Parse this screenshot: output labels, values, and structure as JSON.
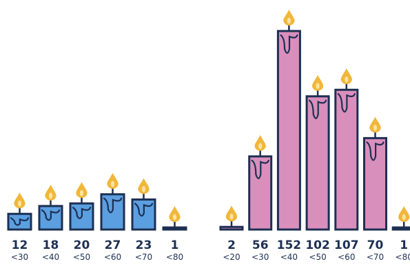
{
  "colors": {
    "outline": "#1d2f52",
    "flame": "#f1b73a",
    "flame_inner": "#fbe3a0",
    "text": "#1d2f52"
  },
  "chart_data": [
    {
      "type": "bar",
      "style": "candles",
      "title": "",
      "xlabel": "",
      "ylabel": "",
      "categories": [
        "<30",
        "<40",
        "<50",
        "<60",
        "<70",
        "<80"
      ],
      "values": [
        12,
        18,
        20,
        27,
        23,
        1
      ],
      "value_labels": [
        "12",
        "18",
        "20",
        "27",
        "23",
        "1"
      ],
      "color": "#5b9fe0",
      "ylim": [
        0,
        152
      ],
      "grid": false,
      "legend": "none"
    },
    {
      "type": "bar",
      "style": "candles",
      "title": "",
      "xlabel": "",
      "ylabel": "",
      "categories": [
        "<20",
        "<30",
        "<40",
        "<50",
        "<60",
        "<70",
        "<80"
      ],
      "values": [
        2,
        56,
        152,
        102,
        107,
        70,
        1
      ],
      "value_labels": [
        "2",
        "56",
        "152",
        "102",
        "107",
        "70",
        "1"
      ],
      "color": "#d98fbc",
      "ylim": [
        0,
        152
      ],
      "grid": false,
      "legend": "none"
    }
  ]
}
